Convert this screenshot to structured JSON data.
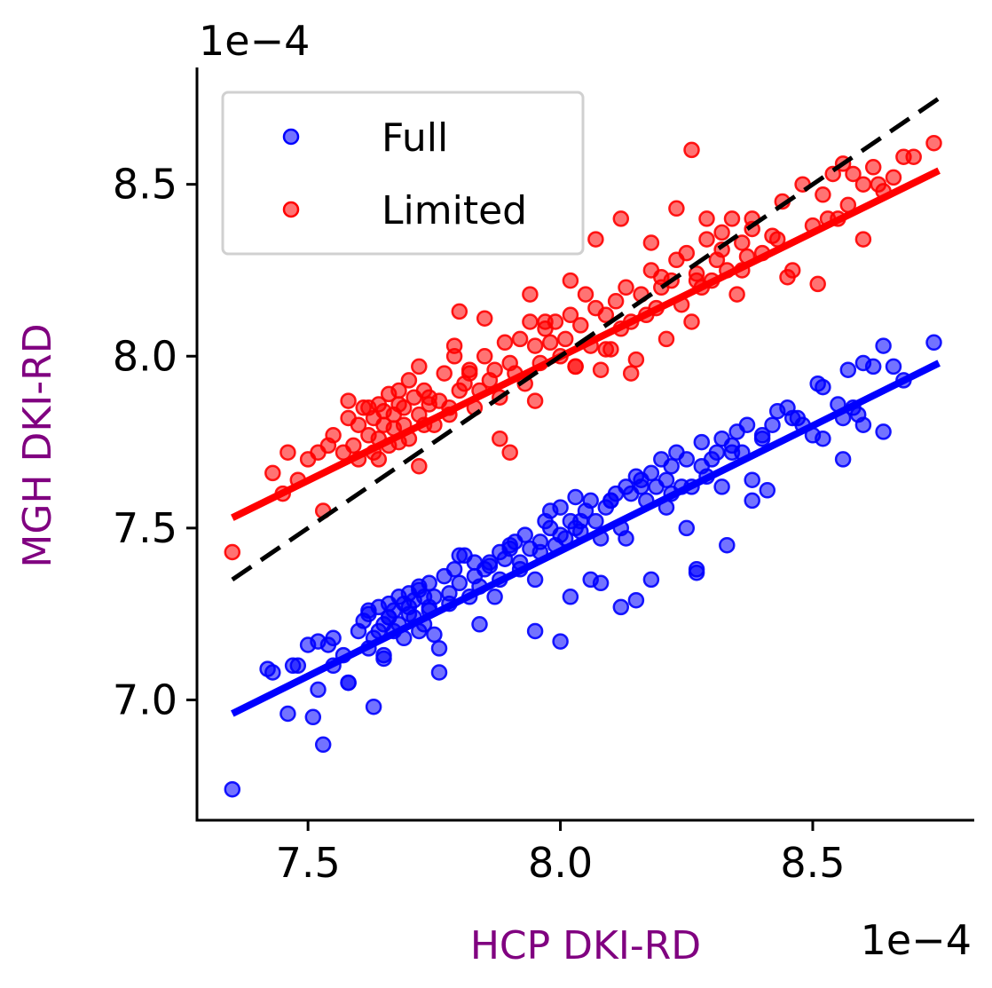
{
  "chart_data": {
    "type": "scatter",
    "xlabel": "HCP DKI-RD",
    "ylabel": "MGH DKI-RD",
    "label_color": "#800080",
    "x_offset_text": "1e−4",
    "y_offset_text": "1e−4",
    "xlim": [
      7.28,
      8.82
    ],
    "ylim": [
      6.65,
      8.84
    ],
    "xticks": [
      7.5,
      8.0,
      8.5
    ],
    "xtick_labels": [
      "7.5",
      "8.0",
      "8.5"
    ],
    "yticks": [
      7.0,
      7.5,
      8.0,
      8.5
    ],
    "ytick_labels": [
      "7.0",
      "7.5",
      "8.0",
      "8.5"
    ],
    "grid": false,
    "legend": {
      "location": "upper left",
      "entries": [
        {
          "label": "Full",
          "color": "#0000ff"
        },
        {
          "label": "Limited",
          "color": "#ff0000"
        }
      ]
    },
    "identity_line": {
      "x": [
        7.35,
        8.75
      ],
      "y": [
        7.35,
        8.75
      ],
      "color": "#000000",
      "style": "dashed"
    },
    "series": [
      {
        "name": "Full",
        "color": "#0000ff",
        "fit": {
          "x": [
            7.35,
            8.75
          ],
          "y": [
            6.96,
            7.98
          ]
        },
        "x": [
          7.35,
          7.42,
          7.43,
          7.46,
          7.47,
          7.48,
          7.5,
          7.51,
          7.52,
          7.52,
          7.53,
          7.54,
          7.55,
          7.57,
          7.58,
          7.6,
          7.61,
          7.62,
          7.62,
          7.63,
          7.63,
          7.64,
          7.64,
          7.65,
          7.65,
          7.66,
          7.66,
          7.67,
          7.67,
          7.68,
          7.68,
          7.69,
          7.69,
          7.7,
          7.7,
          7.71,
          7.71,
          7.72,
          7.72,
          7.73,
          7.73,
          7.74,
          7.74,
          7.75,
          7.75,
          7.76,
          7.77,
          7.78,
          7.78,
          7.79,
          7.8,
          7.81,
          7.82,
          7.83,
          7.83,
          7.84,
          7.85,
          7.86,
          7.87,
          7.88,
          7.89,
          7.9,
          7.91,
          7.92,
          7.93,
          7.94,
          7.95,
          7.96,
          7.97,
          7.98,
          7.99,
          8.0,
          8.0,
          8.01,
          8.02,
          8.03,
          8.04,
          8.05,
          8.06,
          8.07,
          8.08,
          8.09,
          8.1,
          8.11,
          8.12,
          8.13,
          8.14,
          8.15,
          8.16,
          8.17,
          8.18,
          8.19,
          8.2,
          8.21,
          8.22,
          8.23,
          8.24,
          8.25,
          8.26,
          8.27,
          8.28,
          8.29,
          8.3,
          8.31,
          8.32,
          8.33,
          8.34,
          8.35,
          8.36,
          8.37,
          8.38,
          8.4,
          8.41,
          8.42,
          8.43,
          8.45,
          8.47,
          8.48,
          8.5,
          8.51,
          8.52,
          8.55,
          8.56,
          8.57,
          8.59,
          8.6,
          8.62,
          8.64,
          8.66,
          8.68,
          8.74,
          7.55,
          7.65,
          7.58,
          7.7,
          7.76,
          7.84,
          7.88,
          7.95,
          8.0,
          8.02,
          8.06,
          8.08,
          8.12,
          8.15,
          8.18,
          8.25,
          8.27,
          8.32,
          8.38,
          8.56,
          8.64,
          8.52,
          8.6,
          7.98,
          8.13,
          8.21,
          8.03,
          7.92,
          7.8,
          7.72,
          7.62,
          7.66,
          7.74,
          7.86,
          7.9,
          7.96,
          8.04,
          8.1,
          8.16,
          8.22,
          8.28,
          8.34,
          8.4,
          8.46,
          8.58
        ],
        "y": [
          6.74,
          7.09,
          7.08,
          6.96,
          7.1,
          7.1,
          7.16,
          6.95,
          7.17,
          7.03,
          6.87,
          7.16,
          7.18,
          7.13,
          7.05,
          7.2,
          7.23,
          7.15,
          7.25,
          7.18,
          6.98,
          7.27,
          7.2,
          7.22,
          7.13,
          7.24,
          7.28,
          7.26,
          7.2,
          7.3,
          7.22,
          7.28,
          7.18,
          7.31,
          7.25,
          7.24,
          7.29,
          7.33,
          7.2,
          7.22,
          7.3,
          7.27,
          7.34,
          7.3,
          7.19,
          7.08,
          7.36,
          7.31,
          7.28,
          7.38,
          7.34,
          7.42,
          7.3,
          7.4,
          7.36,
          7.33,
          7.38,
          7.39,
          7.3,
          7.43,
          7.41,
          7.44,
          7.46,
          7.38,
          7.48,
          7.44,
          7.35,
          7.46,
          7.52,
          7.5,
          7.45,
          7.56,
          7.48,
          7.47,
          7.52,
          7.5,
          7.52,
          7.55,
          7.58,
          7.52,
          7.47,
          7.56,
          7.58,
          7.6,
          7.5,
          7.62,
          7.6,
          7.65,
          7.64,
          7.58,
          7.66,
          7.62,
          7.7,
          7.64,
          7.68,
          7.72,
          7.62,
          7.7,
          7.62,
          7.37,
          7.75,
          7.65,
          7.7,
          7.72,
          7.76,
          7.45,
          7.74,
          7.78,
          7.72,
          7.8,
          7.64,
          7.77,
          7.61,
          7.8,
          7.84,
          7.85,
          7.82,
          7.8,
          7.77,
          7.92,
          7.91,
          7.86,
          7.7,
          7.96,
          7.83,
          7.98,
          7.97,
          8.03,
          7.97,
          7.93,
          8.04,
          7.1,
          7.12,
          7.05,
          7.27,
          7.15,
          7.22,
          7.35,
          7.2,
          7.17,
          7.3,
          7.35,
          7.34,
          7.27,
          7.29,
          7.35,
          7.5,
          7.38,
          7.62,
          7.58,
          7.82,
          7.78,
          7.76,
          7.8,
          7.55,
          7.47,
          7.56,
          7.59,
          7.4,
          7.42,
          7.32,
          7.26,
          7.24,
          7.26,
          7.4,
          7.45,
          7.43,
          7.49,
          7.58,
          7.62,
          7.6,
          7.68,
          7.72,
          7.76,
          7.82,
          7.85
        ]
      },
      {
        "name": "Limited",
        "color": "#ff0000",
        "fit": {
          "x": [
            7.35,
            8.75
          ],
          "y": [
            7.53,
            8.54
          ]
        },
        "x": [
          7.35,
          7.43,
          7.45,
          7.46,
          7.48,
          7.5,
          7.52,
          7.53,
          7.54,
          7.55,
          7.57,
          7.58,
          7.59,
          7.6,
          7.6,
          7.61,
          7.62,
          7.63,
          7.63,
          7.64,
          7.64,
          7.65,
          7.65,
          7.66,
          7.66,
          7.67,
          7.67,
          7.68,
          7.68,
          7.69,
          7.69,
          7.7,
          7.7,
          7.71,
          7.72,
          7.72,
          7.73,
          7.73,
          7.74,
          7.75,
          7.76,
          7.77,
          7.78,
          7.79,
          7.8,
          7.81,
          7.82,
          7.83,
          7.84,
          7.85,
          7.86,
          7.87,
          7.88,
          7.89,
          7.9,
          7.91,
          7.92,
          7.93,
          7.94,
          7.95,
          7.96,
          7.97,
          7.98,
          7.99,
          8.0,
          8.01,
          8.02,
          8.03,
          8.04,
          8.05,
          8.06,
          8.07,
          8.08,
          8.09,
          8.1,
          8.11,
          8.12,
          8.13,
          8.14,
          8.15,
          8.16,
          8.17,
          8.18,
          8.19,
          8.2,
          8.21,
          8.22,
          8.23,
          8.24,
          8.25,
          8.26,
          8.27,
          8.28,
          8.29,
          8.3,
          8.31,
          8.32,
          8.33,
          8.34,
          8.35,
          8.36,
          8.37,
          8.38,
          8.4,
          8.42,
          8.44,
          8.46,
          8.48,
          8.5,
          8.52,
          8.54,
          8.55,
          8.56,
          8.58,
          8.6,
          8.62,
          8.64,
          8.66,
          8.68,
          8.74,
          7.62,
          7.68,
          7.74,
          7.79,
          7.8,
          7.85,
          7.9,
          7.94,
          7.97,
          8.02,
          8.07,
          8.12,
          8.18,
          8.23,
          8.26,
          8.29,
          8.36,
          8.43,
          8.51,
          8.6,
          8.7,
          7.58,
          7.64,
          7.72,
          7.78,
          7.82,
          7.88,
          7.95,
          8.03,
          8.09,
          8.14,
          8.2,
          8.27,
          8.32,
          8.38,
          8.45,
          8.53,
          8.57,
          8.63
        ],
        "y": [
          7.43,
          7.66,
          7.6,
          7.72,
          7.64,
          7.7,
          7.72,
          7.55,
          7.74,
          7.77,
          7.72,
          7.82,
          7.74,
          7.8,
          7.7,
          7.85,
          7.77,
          7.82,
          7.72,
          7.86,
          7.76,
          7.8,
          7.84,
          7.74,
          7.89,
          7.79,
          7.83,
          7.9,
          7.75,
          7.85,
          7.8,
          7.93,
          7.76,
          7.88,
          7.83,
          7.97,
          7.8,
          7.9,
          7.86,
          7.8,
          7.87,
          7.95,
          7.83,
          8.0,
          7.9,
          7.92,
          7.95,
          7.85,
          7.9,
          8.0,
          7.93,
          7.96,
          7.88,
          8.04,
          7.98,
          7.95,
          8.05,
          7.92,
          8.1,
          8.03,
          7.98,
          8.08,
          8.04,
          8.1,
          8.0,
          8.05,
          8.12,
          7.97,
          8.09,
          8.18,
          8.03,
          8.14,
          7.96,
          8.12,
          8.02,
          8.16,
          8.08,
          8.2,
          8.1,
          7.99,
          8.18,
          8.12,
          8.25,
          8.14,
          8.2,
          8.05,
          8.22,
          8.28,
          8.15,
          8.3,
          8.1,
          8.24,
          8.2,
          8.34,
          8.22,
          8.28,
          8.36,
          8.25,
          8.4,
          8.18,
          8.33,
          8.29,
          8.4,
          8.3,
          8.35,
          8.45,
          8.25,
          8.5,
          8.38,
          8.47,
          8.53,
          8.4,
          8.56,
          8.53,
          8.5,
          8.55,
          8.48,
          8.52,
          8.58,
          8.62,
          7.85,
          7.86,
          7.88,
          8.03,
          8.13,
          8.11,
          7.72,
          8.18,
          8.1,
          8.22,
          8.34,
          8.4,
          8.33,
          8.43,
          8.6,
          8.4,
          8.25,
          8.34,
          8.21,
          8.34,
          8.58,
          7.87,
          7.7,
          7.68,
          7.85,
          7.96,
          7.76,
          7.87,
          7.97,
          8.02,
          7.95,
          8.23,
          8.22,
          8.31,
          8.37,
          8.23,
          8.4,
          8.44,
          8.5
        ]
      }
    ]
  }
}
